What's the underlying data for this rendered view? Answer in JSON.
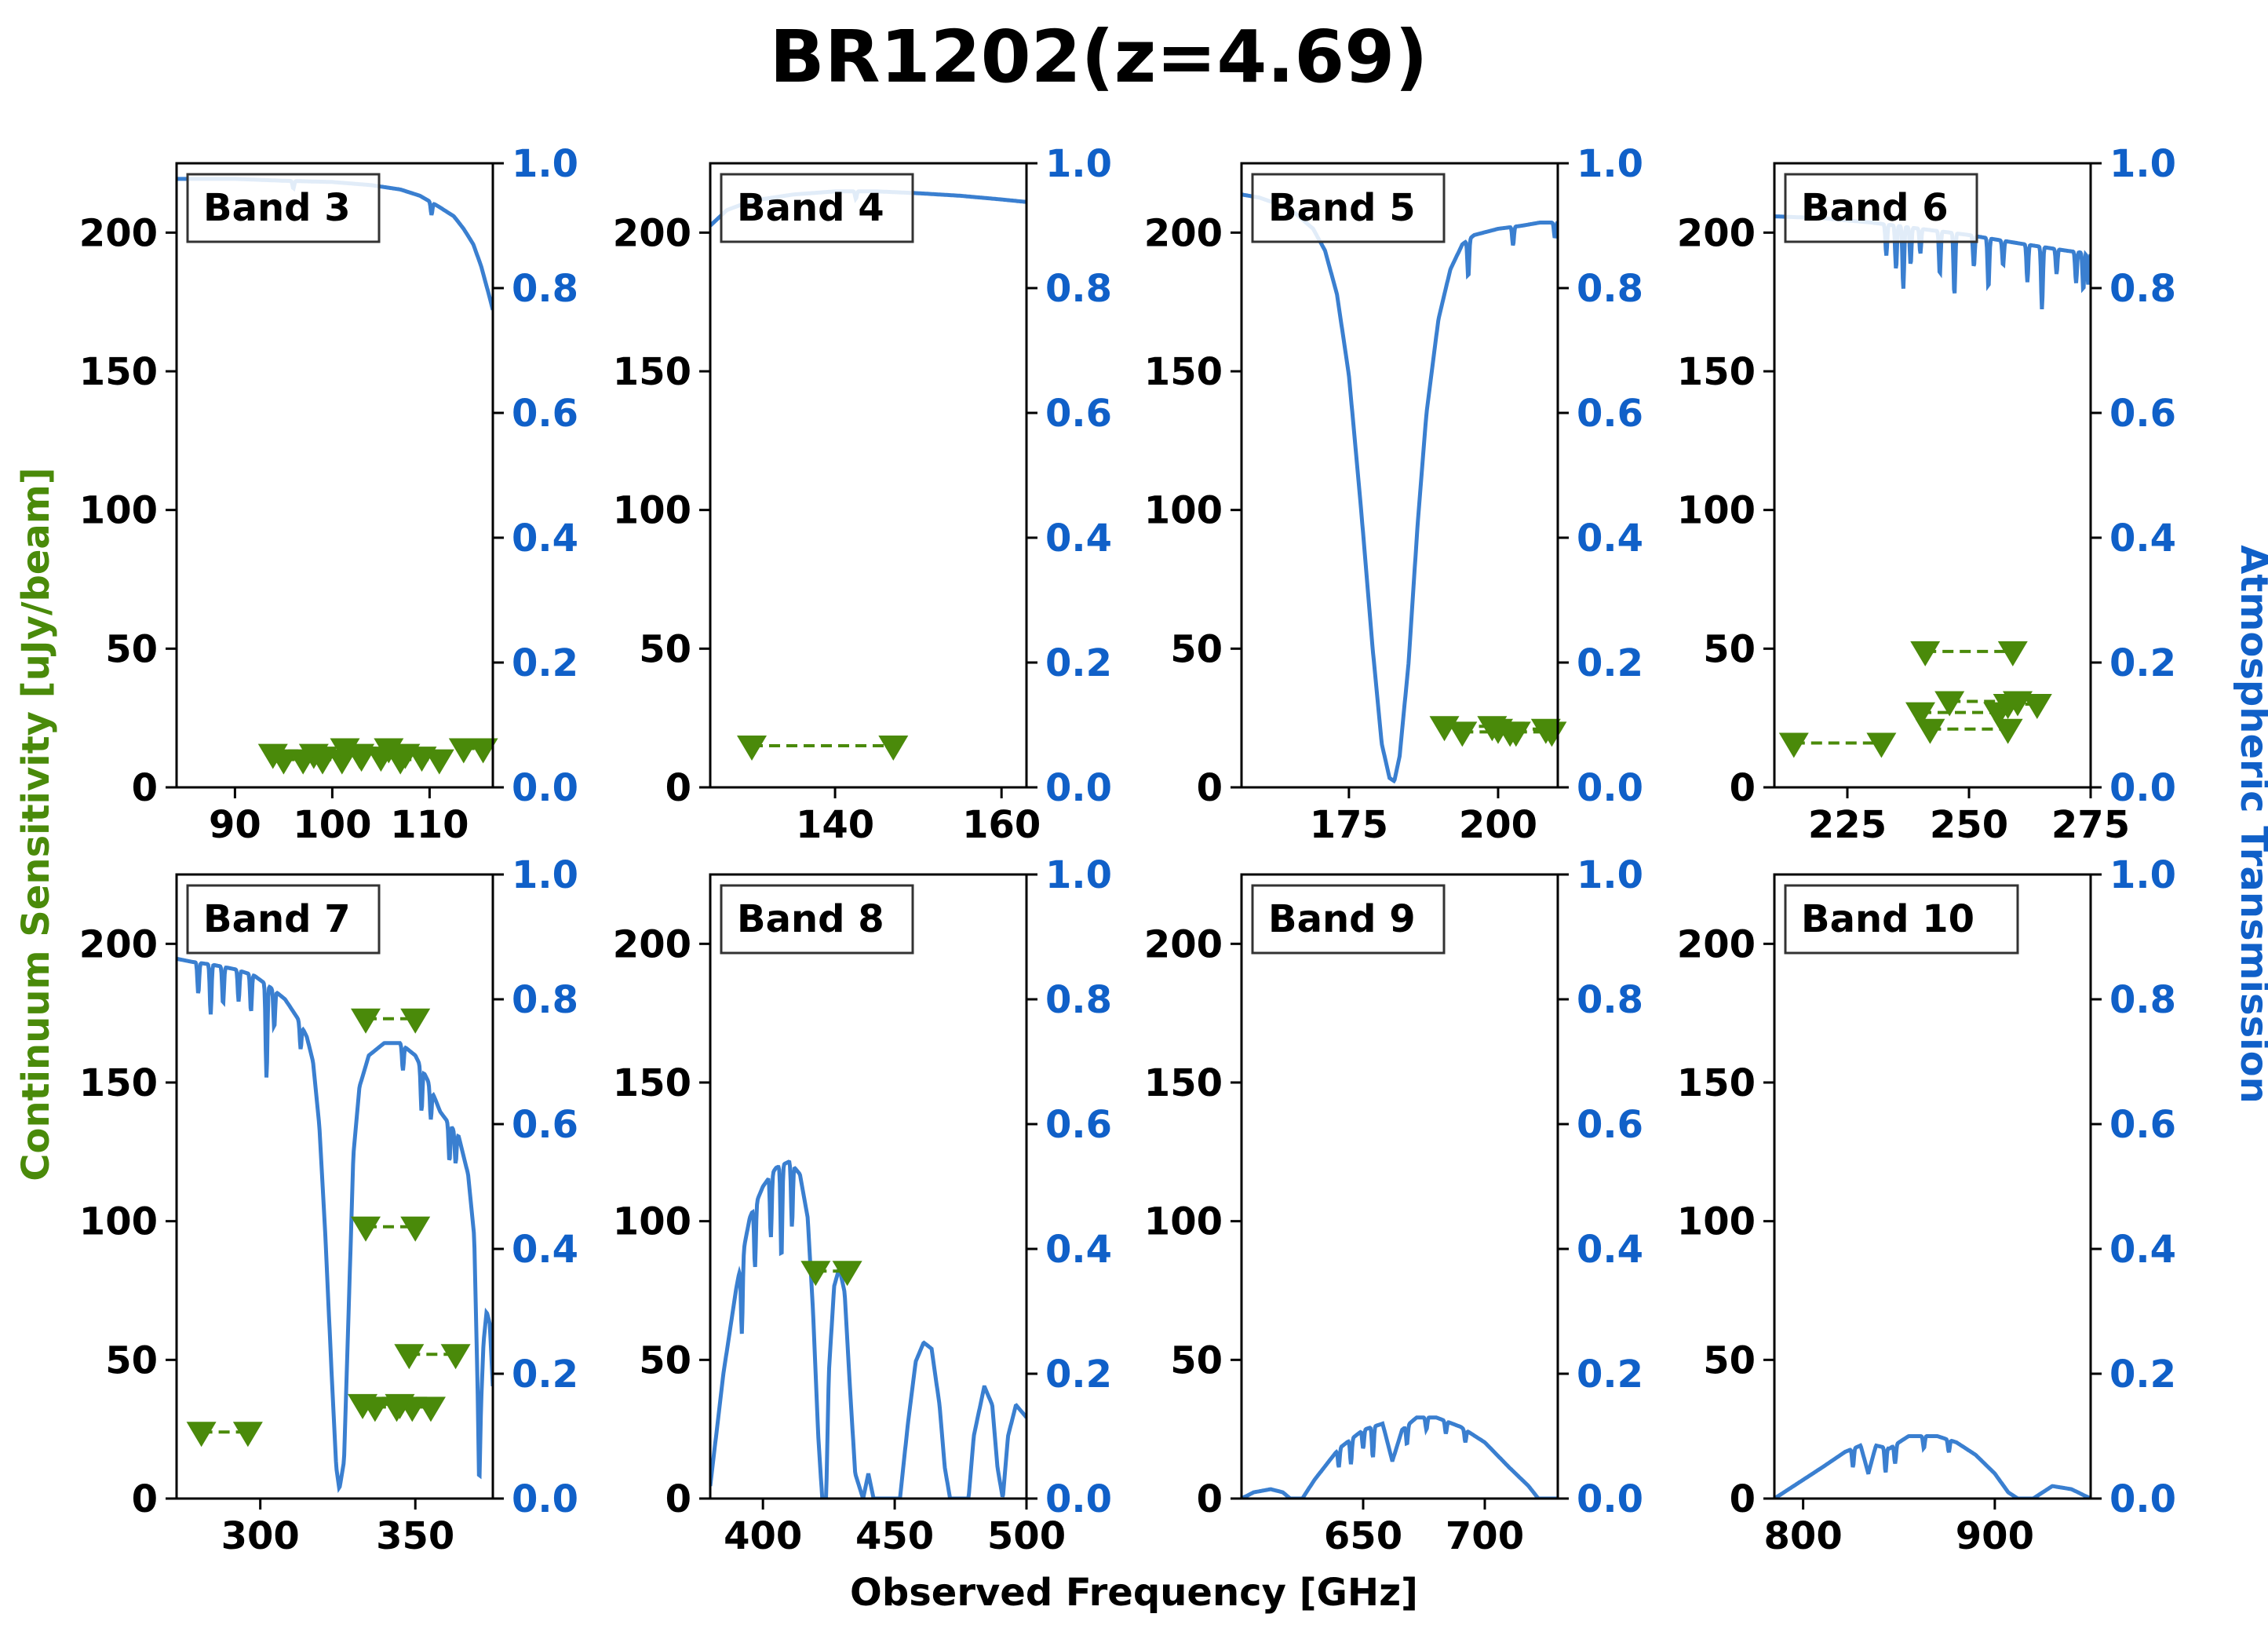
{
  "figure": {
    "title": "BR1202(z=4.69)",
    "xlabel": "Observed Frequency [GHz]",
    "ylabel_left": "Continuum Sensitivity [uJy/beam]",
    "ylabel_right": "Atmospheric Transmission",
    "colors": {
      "sensitivity": "#4a8a0a",
      "transmission": "#3a7fd0",
      "right_axis_text": "#1060c8",
      "axis": "#000000"
    }
  },
  "chart_data": [
    {
      "type": "line",
      "panel": "Band 3",
      "xlim": [
        84,
        116.5
      ],
      "xticks": [
        90,
        100,
        110
      ],
      "ylim": [
        0,
        225
      ],
      "yticks": [
        0,
        50,
        100,
        150,
        200
      ],
      "y2lim": [
        0,
        1
      ],
      "y2ticks": [
        "0.0",
        "0.2",
        "0.4",
        "0.6",
        "0.8",
        "1.0"
      ],
      "transmission": [
        [
          84,
          0.975
        ],
        [
          90,
          0.975
        ],
        [
          95,
          0.972
        ],
        [
          100,
          0.97
        ],
        [
          104,
          0.965
        ],
        [
          107,
          0.958
        ],
        [
          109,
          0.948
        ],
        [
          111,
          0.93
        ],
        [
          112.5,
          0.915
        ],
        [
          113.5,
          0.895
        ],
        [
          114.5,
          0.87
        ],
        [
          115.3,
          0.835
        ],
        [
          116,
          0.795
        ],
        [
          116.5,
          0.765
        ]
      ],
      "absorption_dips": [
        [
          96,
          0.012
        ],
        [
          110.2,
          0.02
        ]
      ],
      "sensitivity_segments": [
        [
          93.9,
          98.1,
          12
        ],
        [
          95,
          99,
          10
        ],
        [
          97,
          101,
          10
        ],
        [
          99,
          103,
          11
        ],
        [
          101.3,
          105.8,
          14
        ],
        [
          102.8,
          107.5,
          12
        ],
        [
          105,
          109.2,
          11
        ],
        [
          107,
          111,
          10
        ],
        [
          113.5,
          115.5,
          14
        ]
      ]
    },
    {
      "type": "line",
      "panel": "Band 4",
      "xlim": [
        125,
        163
      ],
      "xticks": [
        140,
        160
      ],
      "ylim": [
        0,
        225
      ],
      "yticks": [
        0,
        50,
        100,
        150,
        200
      ],
      "y2lim": [
        0,
        1
      ],
      "y2ticks": [
        "0.0",
        "0.2",
        "0.4",
        "0.6",
        "0.8",
        "1.0"
      ],
      "transmission": [
        [
          125,
          0.9
        ],
        [
          127,
          0.925
        ],
        [
          130,
          0.94
        ],
        [
          135,
          0.95
        ],
        [
          140,
          0.955
        ],
        [
          145,
          0.955
        ],
        [
          150,
          0.952
        ],
        [
          155,
          0.948
        ],
        [
          160,
          0.942
        ],
        [
          163,
          0.938
        ]
      ],
      "absorption_dips": [
        [
          142.5,
          0.012
        ]
      ],
      "sensitivity_segments": [
        [
          130,
          147,
          15
        ]
      ]
    },
    {
      "type": "line",
      "panel": "Band 5",
      "xlim": [
        157,
        210
      ],
      "xticks": [
        175,
        200
      ],
      "ylim": [
        0,
        225
      ],
      "yticks": [
        0,
        50,
        100,
        150,
        200
      ],
      "y2lim": [
        0,
        1
      ],
      "y2ticks": [
        "0.0",
        "0.2",
        "0.4",
        "0.6",
        "0.8",
        "1.0"
      ],
      "transmission": [
        [
          157,
          0.95
        ],
        [
          160,
          0.945
        ],
        [
          163,
          0.935
        ],
        [
          166,
          0.92
        ],
        [
          169,
          0.895
        ],
        [
          171,
          0.86
        ],
        [
          173,
          0.79
        ],
        [
          175,
          0.66
        ],
        [
          177,
          0.45
        ],
        [
          179,
          0.22
        ],
        [
          180.5,
          0.07
        ],
        [
          181.8,
          0.015
        ],
        [
          182.6,
          0.01
        ],
        [
          183.5,
          0.05
        ],
        [
          185,
          0.2
        ],
        [
          186.5,
          0.42
        ],
        [
          188,
          0.6
        ],
        [
          190,
          0.75
        ],
        [
          192,
          0.83
        ],
        [
          194,
          0.87
        ],
        [
          196,
          0.885
        ],
        [
          200,
          0.895
        ],
        [
          204,
          0.9
        ],
        [
          207,
          0.905
        ],
        [
          210,
          0.905
        ]
      ],
      "absorption_dips": [
        [
          195,
          0.06
        ],
        [
          202.5,
          0.03
        ],
        [
          209.5,
          0.025
        ]
      ],
      "sensitivity_segments": [
        [
          191,
          199,
          22
        ],
        [
          194,
          202,
          20
        ],
        [
          200,
          208,
          21
        ],
        [
          203,
          209,
          20
        ]
      ]
    },
    {
      "type": "line",
      "panel": "Band 6",
      "xlim": [
        210,
        275
      ],
      "xticks": [
        225,
        250,
        275
      ],
      "ylim": [
        0,
        225
      ],
      "yticks": [
        0,
        50,
        100,
        150,
        200
      ],
      "y2lim": [
        0,
        1
      ],
      "y2ticks": [
        "0.0",
        "0.2",
        "0.4",
        "0.6",
        "0.8",
        "1.0"
      ],
      "transmission": [
        [
          210,
          0.915
        ],
        [
          220,
          0.912
        ],
        [
          230,
          0.905
        ],
        [
          240,
          0.895
        ],
        [
          250,
          0.885
        ],
        [
          260,
          0.872
        ],
        [
          270,
          0.86
        ],
        [
          275,
          0.855
        ]
      ],
      "absorption_dips": [
        [
          233,
          0.05
        ],
        [
          235,
          0.07
        ],
        [
          236.5,
          0.1
        ],
        [
          238,
          0.06
        ],
        [
          240,
          0.04
        ],
        [
          244,
          0.07
        ],
        [
          247,
          0.1
        ],
        [
          251,
          0.05
        ],
        [
          254,
          0.08
        ],
        [
          257,
          0.04
        ],
        [
          262,
          0.06
        ],
        [
          265,
          0.1
        ],
        [
          268,
          0.04
        ],
        [
          272,
          0.05
        ],
        [
          273.5,
          0.06
        ],
        [
          274.5,
          0.05
        ]
      ],
      "sensitivity_segments": [
        [
          214,
          232,
          16
        ],
        [
          241,
          259,
          49
        ],
        [
          246,
          260,
          31
        ],
        [
          240,
          256,
          27
        ],
        [
          242,
          258,
          21
        ],
        [
          258,
          264,
          30
        ]
      ]
    },
    {
      "type": "line",
      "panel": "Band 7",
      "xlim": [
        273,
        375
      ],
      "xticks": [
        300,
        350
      ],
      "ylim": [
        0,
        225
      ],
      "yticks": [
        0,
        50,
        100,
        150,
        200
      ],
      "y2lim": [
        0,
        1
      ],
      "y2ticks": [
        "0.0",
        "0.2",
        "0.4",
        "0.6",
        "0.8",
        "1.0"
      ],
      "transmission": [
        [
          273,
          0.865
        ],
        [
          278,
          0.86
        ],
        [
          285,
          0.855
        ],
        [
          292,
          0.848
        ],
        [
          298,
          0.838
        ],
        [
          303,
          0.82
        ],
        [
          308,
          0.8
        ],
        [
          312,
          0.77
        ],
        [
          315,
          0.74
        ],
        [
          317,
          0.7
        ],
        [
          319,
          0.6
        ],
        [
          321,
          0.42
        ],
        [
          323,
          0.2
        ],
        [
          324.5,
          0.05
        ],
        [
          325.5,
          0.015
        ],
        [
          327,
          0.06
        ],
        [
          328.5,
          0.3
        ],
        [
          330,
          0.55
        ],
        [
          332,
          0.66
        ],
        [
          335,
          0.71
        ],
        [
          340,
          0.73
        ],
        [
          345,
          0.73
        ],
        [
          350,
          0.71
        ],
        [
          354,
          0.67
        ],
        [
          358,
          0.62
        ],
        [
          361,
          0.6
        ],
        [
          364,
          0.58
        ],
        [
          367,
          0.52
        ],
        [
          369,
          0.42
        ],
        [
          370,
          0.2
        ],
        [
          370.6,
          0.01
        ],
        [
          371.2,
          0.15
        ],
        [
          372,
          0.25
        ],
        [
          373,
          0.3
        ],
        [
          374,
          0.28
        ],
        [
          375,
          0.18
        ]
      ],
      "absorption_dips": [
        [
          280,
          0.05
        ],
        [
          284,
          0.08
        ],
        [
          288,
          0.06
        ],
        [
          293,
          0.05
        ],
        [
          297,
          0.06
        ],
        [
          302,
          0.15
        ],
        [
          304.5,
          0.06
        ],
        [
          313,
          0.04
        ],
        [
          346,
          0.04
        ],
        [
          352,
          0.07
        ],
        [
          355,
          0.05
        ],
        [
          361,
          0.06
        ],
        [
          363,
          0.05
        ]
      ],
      "sensitivity_segments": [
        [
          281,
          296,
          24
        ],
        [
          334,
          350,
          173
        ],
        [
          334,
          350,
          98
        ],
        [
          348,
          363,
          52
        ],
        [
          333,
          345,
          34
        ],
        [
          337,
          349,
          33
        ],
        [
          344,
          355,
          33
        ]
      ]
    },
    {
      "type": "line",
      "panel": "Band 8",
      "xlim": [
        380,
        500
      ],
      "xticks": [
        400,
        450,
        500
      ],
      "ylim": [
        0,
        225
      ],
      "yticks": [
        0,
        50,
        100,
        150,
        200
      ],
      "y2lim": [
        0,
        1
      ],
      "y2ticks": [
        "0.0",
        "0.2",
        "0.4",
        "0.6",
        "0.8",
        "1.0"
      ],
      "transmission": [
        [
          380,
          0.02
        ],
        [
          385,
          0.2
        ],
        [
          390,
          0.34
        ],
        [
          395,
          0.45
        ],
        [
          400,
          0.5
        ],
        [
          405,
          0.53
        ],
        [
          410,
          0.54
        ],
        [
          414,
          0.52
        ],
        [
          417,
          0.45
        ],
        [
          419,
          0.3
        ],
        [
          421,
          0.1
        ],
        [
          422.5,
          0.0
        ],
        [
          424,
          0.0
        ],
        [
          425,
          0.2
        ],
        [
          427,
          0.34
        ],
        [
          429,
          0.37
        ],
        [
          431,
          0.33
        ],
        [
          433,
          0.18
        ],
        [
          435,
          0.04
        ],
        [
          438,
          0.0
        ],
        [
          440,
          0.04
        ],
        [
          442,
          0.0
        ],
        [
          452,
          0.0
        ],
        [
          455,
          0.12
        ],
        [
          458,
          0.22
        ],
        [
          461,
          0.25
        ],
        [
          464,
          0.24
        ],
        [
          467,
          0.15
        ],
        [
          469,
          0.05
        ],
        [
          471,
          0.0
        ],
        [
          478,
          0.0
        ],
        [
          480,
          0.1
        ],
        [
          484,
          0.18
        ],
        [
          487,
          0.15
        ],
        [
          489,
          0.05
        ],
        [
          491,
          0.0
        ],
        [
          493,
          0.1
        ],
        [
          496,
          0.15
        ],
        [
          500,
          0.13
        ]
      ],
      "absorption_dips": [
        [
          392,
          0.12
        ],
        [
          397,
          0.1
        ],
        [
          403,
          0.1
        ],
        [
          407,
          0.15
        ],
        [
          411,
          0.1
        ]
      ],
      "sensitivity_segments": [
        [
          420,
          432,
          82
        ]
      ]
    },
    {
      "type": "line",
      "panel": "Band 9",
      "xlim": [
        600,
        730
      ],
      "xticks": [
        650,
        700
      ],
      "ylim": [
        0,
        225
      ],
      "yticks": [
        0,
        50,
        100,
        150,
        200
      ],
      "y2lim": [
        0,
        1
      ],
      "y2ticks": [
        "0.0",
        "0.2",
        "0.4",
        "0.6",
        "0.8",
        "1.0"
      ],
      "transmission": [
        [
          600,
          0.0
        ],
        [
          605,
          0.01
        ],
        [
          612,
          0.015
        ],
        [
          617,
          0.01
        ],
        [
          620,
          0.0
        ],
        [
          625,
          0.0
        ],
        [
          630,
          0.03
        ],
        [
          640,
          0.08
        ],
        [
          650,
          0.11
        ],
        [
          658,
          0.12
        ],
        [
          662,
          0.06
        ],
        [
          666,
          0.11
        ],
        [
          672,
          0.13
        ],
        [
          680,
          0.13
        ],
        [
          690,
          0.115
        ],
        [
          700,
          0.09
        ],
        [
          710,
          0.05
        ],
        [
          718,
          0.02
        ],
        [
          722,
          0.0
        ],
        [
          730,
          0.0
        ]
      ],
      "absorption_dips": [
        [
          640,
          0.03
        ],
        [
          645,
          0.04
        ],
        [
          650,
          0.03
        ],
        [
          654,
          0.05
        ],
        [
          668,
          0.03
        ],
        [
          676,
          0.02
        ],
        [
          684,
          0.02
        ],
        [
          692,
          0.02
        ]
      ],
      "sensitivity_segments": []
    },
    {
      "type": "line",
      "panel": "Band 10",
      "xlim": [
        785,
        950
      ],
      "xticks": [
        800,
        900
      ],
      "ylim": [
        0,
        225
      ],
      "yticks": [
        0,
        50,
        100,
        150,
        200
      ],
      "y2lim": [
        0,
        1
      ],
      "y2ticks": [
        "0.0",
        "0.2",
        "0.4",
        "0.6",
        "0.8",
        "1.0"
      ],
      "transmission": [
        [
          785,
          0.0
        ],
        [
          795,
          0.02
        ],
        [
          810,
          0.05
        ],
        [
          822,
          0.075
        ],
        [
          830,
          0.085
        ],
        [
          834,
          0.04
        ],
        [
          838,
          0.085
        ],
        [
          845,
          0.08
        ],
        [
          850,
          0.09
        ],
        [
          855,
          0.1
        ],
        [
          860,
          0.1
        ],
        [
          870,
          0.1
        ],
        [
          880,
          0.09
        ],
        [
          890,
          0.07
        ],
        [
          900,
          0.04
        ],
        [
          907,
          0.01
        ],
        [
          912,
          0.0
        ],
        [
          920,
          0.0
        ],
        [
          930,
          0.02
        ],
        [
          940,
          0.015
        ],
        [
          950,
          0.0
        ]
      ],
      "absorption_dips": [
        [
          826,
          0.03
        ],
        [
          843,
          0.04
        ],
        [
          848,
          0.03
        ],
        [
          863,
          0.02
        ],
        [
          876,
          0.02
        ]
      ],
      "sensitivity_segments": []
    }
  ]
}
